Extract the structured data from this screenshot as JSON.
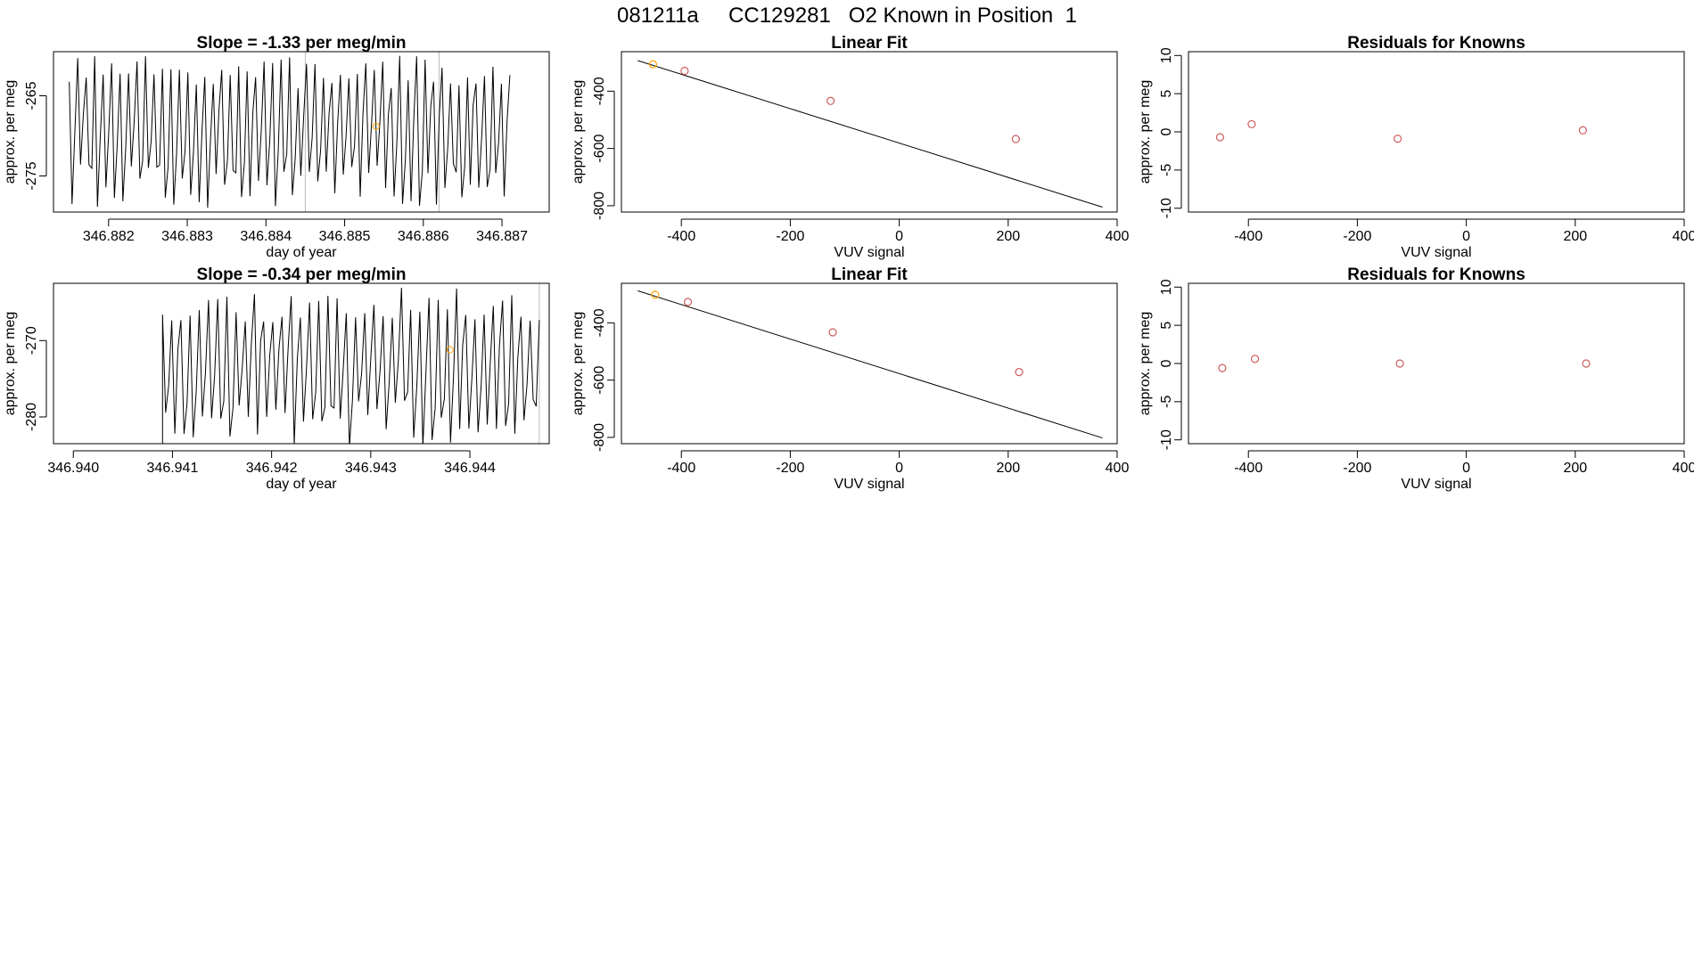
{
  "page_title": "081211a     CC129281   O2 Known in Position  1",
  "chart_data": [
    {
      "id": "ts1",
      "type": "line",
      "title": "Slope =  -1.33  per meg/min",
      "xlabel": "day of year",
      "ylabel": "approx. per meg",
      "xlim": [
        346.8813,
        346.8876
      ],
      "ylim": [
        -279.5,
        -259.5
      ],
      "xticks": [
        346.882,
        346.883,
        346.884,
        346.885,
        346.886,
        346.887
      ],
      "xtick_labels": [
        "346.882",
        "346.883",
        "346.884",
        "346.885",
        "346.886",
        "346.887"
      ],
      "yticks": [
        -265,
        -275
      ],
      "ytick_labels": [
        "-265",
        "-275"
      ],
      "trace": {
        "start": 346.8815,
        "end": 346.8871,
        "center": -269.5,
        "amplitude": 9.5,
        "cycles": 52,
        "seed": 7,
        "flat_before": null,
        "flat_level": null
      },
      "vlines": [
        346.8845,
        346.8862
      ],
      "markers": [
        {
          "x": 346.8854,
          "y": -268.8,
          "color": "#FFA500"
        }
      ]
    },
    {
      "id": "fit1",
      "type": "scatter",
      "title": "Linear Fit",
      "xlabel": "VUV signal",
      "ylabel": "approx. per meg",
      "xlim": [
        -510,
        400
      ],
      "ylim": [
        -822,
        -262
      ],
      "xticks": [
        -400,
        -200,
        0,
        200,
        400
      ],
      "xtick_labels": [
        "-400",
        "-200",
        "0",
        "200",
        "400"
      ],
      "yticks": [
        -400,
        -600,
        -800
      ],
      "ytick_labels": [
        "-400",
        "-600",
        "-800"
      ],
      "points": [
        {
          "x": -452,
          "y": -306,
          "color": "#FFA500"
        },
        {
          "x": -394,
          "y": -329,
          "color": "#CD5C5C"
        },
        {
          "x": -126,
          "y": -434,
          "color": "#CD5C5C"
        },
        {
          "x": 214,
          "y": -567,
          "color": "#CD5C5C"
        }
      ],
      "fit_line": {
        "x": [
          -480,
          373
        ],
        "y": [
          -293,
          -805
        ]
      }
    },
    {
      "id": "res1",
      "type": "scatter",
      "title": "Residuals for Knowns",
      "xlabel": "VUV signal",
      "ylabel": "approx. per meg",
      "xlim": [
        -510,
        400
      ],
      "ylim": [
        -10.5,
        10.5
      ],
      "xticks": [
        -400,
        -200,
        0,
        200,
        400
      ],
      "xtick_labels": [
        "-400",
        "-200",
        "0",
        "200",
        "400"
      ],
      "yticks": [
        10,
        5,
        0,
        -5,
        -10
      ],
      "ytick_labels": [
        "10",
        "5",
        "0",
        "-5",
        "-10"
      ],
      "points": [
        {
          "x": -452,
          "y": -0.7,
          "color": "#CD5C5C"
        },
        {
          "x": -394,
          "y": 1.0,
          "color": "#CD5C5C"
        },
        {
          "x": -126,
          "y": -0.9,
          "color": "#CD5C5C"
        },
        {
          "x": 214,
          "y": 0.2,
          "color": "#CD5C5C"
        }
      ]
    },
    {
      "id": "ts2",
      "type": "line",
      "title": "Slope =  -0.34  per meg/min",
      "xlabel": "day of year",
      "ylabel": "approx. per meg",
      "xlim": [
        346.9398,
        346.9448
      ],
      "ylim": [
        -283.5,
        -262.5
      ],
      "xticks": [
        346.94,
        346.941,
        346.942,
        346.943,
        346.944
      ],
      "xtick_labels": [
        "346.940",
        "346.941",
        "346.942",
        "346.943",
        "346.944"
      ],
      "yticks": [
        -270,
        -280
      ],
      "ytick_labels": [
        "-270",
        "-280"
      ],
      "trace": {
        "start": 346.9398,
        "end": 346.9447,
        "center": -273.5,
        "amplitude": 10.5,
        "cycles": 41,
        "seed": 11,
        "flat_before": 346.9409,
        "flat_level": -283.5
      },
      "vlines": [
        346.9447
      ],
      "markers": [
        {
          "x": 346.9438,
          "y": -271.2,
          "color": "#FFA500"
        }
      ]
    },
    {
      "id": "fit2",
      "type": "scatter",
      "title": "Linear Fit",
      "xlabel": "VUV signal",
      "ylabel": "approx. per meg",
      "xlim": [
        -510,
        400
      ],
      "ylim": [
        -822,
        -262
      ],
      "xticks": [
        -400,
        -200,
        0,
        200,
        400
      ],
      "xtick_labels": [
        "-400",
        "-200",
        "0",
        "200",
        "400"
      ],
      "yticks": [
        -400,
        -600,
        -800
      ],
      "ytick_labels": [
        "-400",
        "-600",
        "-800"
      ],
      "points": [
        {
          "x": -448,
          "y": -302,
          "color": "#FFA500"
        },
        {
          "x": -388,
          "y": -327,
          "color": "#CD5C5C"
        },
        {
          "x": -122,
          "y": -433,
          "color": "#CD5C5C"
        },
        {
          "x": 220,
          "y": -572,
          "color": "#CD5C5C"
        }
      ],
      "fit_line": {
        "x": [
          -480,
          373
        ],
        "y": [
          -288,
          -802
        ]
      }
    },
    {
      "id": "res2",
      "type": "scatter",
      "title": "Residuals for Knowns",
      "xlabel": "VUV signal",
      "ylabel": "approx. per meg",
      "xlim": [
        -510,
        400
      ],
      "ylim": [
        -10.5,
        10.5
      ],
      "xticks": [
        -400,
        -200,
        0,
        200,
        400
      ],
      "xtick_labels": [
        "-400",
        "-200",
        "0",
        "200",
        "400"
      ],
      "yticks": [
        10,
        5,
        0,
        -5,
        -10
      ],
      "ytick_labels": [
        "10",
        "5",
        "0",
        "-5",
        "-10"
      ],
      "points": [
        {
          "x": -448,
          "y": -0.6,
          "color": "#CD5C5C"
        },
        {
          "x": -388,
          "y": 0.6,
          "color": "#CD5C5C"
        },
        {
          "x": -122,
          "y": 0.0,
          "color": "#CD5C5C"
        },
        {
          "x": 220,
          "y": 0.0,
          "color": "#CD5C5C"
        }
      ]
    }
  ]
}
